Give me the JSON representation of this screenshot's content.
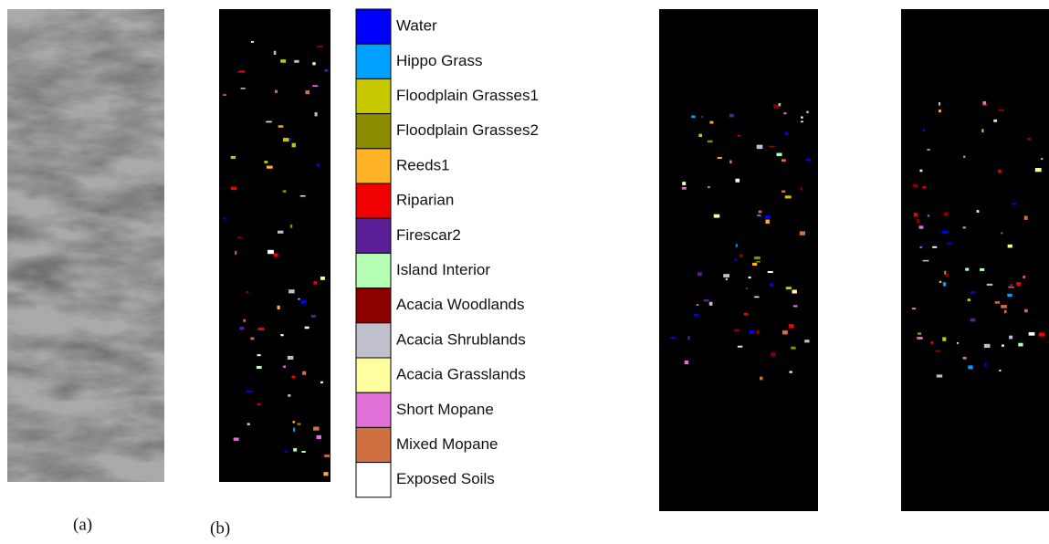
{
  "figure": {
    "panels": [
      {
        "label": "(a)"
      },
      {
        "label": "(b)"
      }
    ],
    "legend": [
      {
        "name": "Water",
        "color": "#0000ff"
      },
      {
        "name": "Hippo Grass",
        "color": "#00a0ff"
      },
      {
        "name": "Floodplain Grasses1",
        "color": "#c8c800"
      },
      {
        "name": "Floodplain Grasses2",
        "color": "#8c8c00"
      },
      {
        "name": "Reeds1",
        "color": "#ffb428"
      },
      {
        "name": "Riparian",
        "color": "#f00000"
      },
      {
        "name": "Firescar2",
        "color": "#5a1e96"
      },
      {
        "name": "Island Interior",
        "color": "#b4ffb4"
      },
      {
        "name": "Acacia Woodlands",
        "color": "#8c0000"
      },
      {
        "name": "Acacia Shrublands",
        "color": "#c0c0cc"
      },
      {
        "name": "Acacia Grasslands",
        "color": "#ffffa0"
      },
      {
        "name": "Short Mopane",
        "color": "#e070d8"
      },
      {
        "name": "Mixed Mopane",
        "color": "#d07040"
      },
      {
        "name": "Exposed Soils",
        "color": "#ffffff"
      }
    ]
  }
}
